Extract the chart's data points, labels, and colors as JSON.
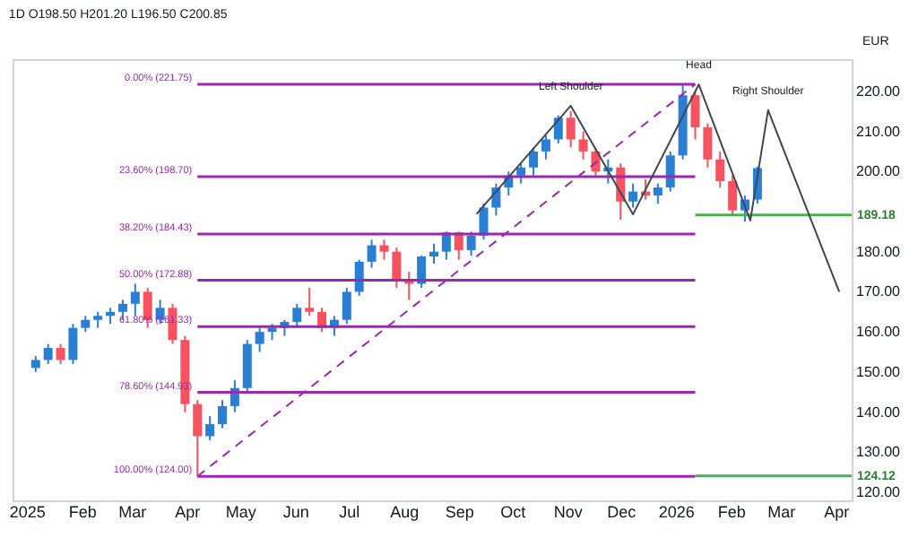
{
  "chart_data": {
    "type": "candlestick",
    "title": "1D  O198.50 H201.20 L196.50 C200.85",
    "x": [
      "2025-01-06",
      "2025-01-13",
      "2025-01-20",
      "2025-01-27",
      "2025-02-03",
      "2025-02-10",
      "2025-02-17",
      "2025-02-24",
      "2025-03-03",
      "2025-03-10",
      "2025-03-17",
      "2025-03-24",
      "2025-03-31",
      "2025-04-07",
      "2025-04-14",
      "2025-04-21",
      "2025-04-28",
      "2025-05-05",
      "2025-05-12",
      "2025-05-19",
      "2025-05-26",
      "2025-06-02",
      "2025-06-09",
      "2025-06-16",
      "2025-06-23",
      "2025-06-30",
      "2025-07-07",
      "2025-07-14",
      "2025-07-21",
      "2025-07-28",
      "2025-08-04",
      "2025-08-11",
      "2025-08-18",
      "2025-08-25",
      "2025-09-01",
      "2025-09-08",
      "2025-09-15",
      "2025-09-22",
      "2025-09-29",
      "2025-10-06",
      "2025-10-13",
      "2025-10-20",
      "2025-10-27",
      "2025-11-03",
      "2025-11-10",
      "2025-11-17",
      "2025-11-24",
      "2025-12-01",
      "2025-12-08",
      "2025-12-15",
      "2025-12-22",
      "2025-12-29",
      "2026-01-05",
      "2026-01-12",
      "2026-01-19",
      "2026-01-26",
      "2026-02-02",
      "2026-02-09",
      "2026-02-16"
    ],
    "ohlc": [
      [
        151,
        154,
        150,
        153
      ],
      [
        153,
        157,
        152,
        156
      ],
      [
        156,
        157,
        152,
        153
      ],
      [
        153,
        162,
        152,
        161
      ],
      [
        161,
        164,
        160,
        163
      ],
      [
        163,
        165,
        161,
        164
      ],
      [
        164,
        166,
        162,
        165
      ],
      [
        165,
        168,
        163,
        167
      ],
      [
        167,
        172,
        164,
        170
      ],
      [
        170,
        171,
        161,
        163
      ],
      [
        163,
        168,
        162,
        166
      ],
      [
        166,
        167,
        157,
        158
      ],
      [
        158,
        159,
        140,
        142
      ],
      [
        142,
        143,
        124,
        134
      ],
      [
        134,
        139,
        133,
        137
      ],
      [
        137,
        143,
        136,
        141.5
      ],
      [
        141.5,
        148,
        140,
        146
      ],
      [
        146,
        158,
        145,
        157
      ],
      [
        157,
        161,
        155,
        160
      ],
      [
        160,
        162,
        158,
        161
      ],
      [
        161,
        163,
        159,
        162.5
      ],
      [
        162.5,
        167,
        161,
        166
      ],
      [
        166,
        171,
        164,
        165
      ],
      [
        165,
        166,
        160,
        161
      ],
      [
        161,
        164,
        159,
        163
      ],
      [
        163,
        171,
        162,
        170
      ],
      [
        170,
        178,
        169,
        177.5
      ],
      [
        177.5,
        183,
        176,
        181.6
      ],
      [
        181.6,
        183,
        178,
        180
      ],
      [
        180,
        181,
        171,
        173
      ],
      [
        173,
        175,
        168,
        172
      ],
      [
        172,
        179,
        171,
        178.8
      ],
      [
        178.8,
        182,
        177,
        180
      ],
      [
        180,
        185,
        178,
        184.8
      ],
      [
        184.8,
        185,
        178,
        180.4
      ],
      [
        180.4,
        185,
        179,
        184
      ],
      [
        184,
        192,
        183,
        191
      ],
      [
        191,
        197,
        189,
        196
      ],
      [
        196,
        200,
        194,
        199
      ],
      [
        199,
        202,
        197,
        201
      ],
      [
        201,
        206,
        199,
        205
      ],
      [
        205,
        209,
        203,
        208
      ],
      [
        208,
        214,
        207,
        213.4
      ],
      [
        213.4,
        215,
        206,
        208
      ],
      [
        208,
        210,
        203,
        205
      ],
      [
        205,
        206,
        199,
        200
      ],
      [
        200,
        203,
        197,
        201
      ],
      [
        201,
        202,
        188,
        192.5
      ],
      [
        192.5,
        197,
        191,
        195
      ],
      [
        195,
        198,
        193,
        194
      ],
      [
        194,
        197,
        192,
        196
      ],
      [
        196,
        205,
        195,
        204
      ],
      [
        204,
        221.75,
        203,
        219
      ],
      [
        219,
        220,
        208,
        211
      ],
      [
        211,
        212,
        201,
        203
      ],
      [
        203,
        205,
        196,
        197.6
      ],
      [
        197.6,
        199,
        189,
        190.3
      ],
      [
        190.3,
        194,
        187.5,
        193
      ],
      [
        193,
        201.2,
        192,
        200.85
      ]
    ],
    "series": [
      {
        "type": "line",
        "color": "#434651",
        "x": [
          "2025-09-11",
          "2025-11-03",
          "2025-12-08",
          "2026-01-14",
          "2026-02-12",
          "2026-02-22",
          "2026-04-03"
        ],
        "values": [
          189.4,
          216.4,
          189.3,
          221.7,
          187.8,
          215.3,
          170
        ]
      },
      {
        "type": "line",
        "color": "#9c27b0",
        "line_style": "dashed",
        "x": [
          "2025-04-07",
          "2026-01-12"
        ],
        "values": [
          124,
          221.75
        ]
      }
    ],
    "ref_lines": [
      {
        "axis": "y",
        "value": 221.75,
        "label": "0.00% (221.75)",
        "color": "#9c27b0"
      },
      {
        "axis": "y",
        "value": 198.7,
        "label": "23.60% (198.70)",
        "color": "#9c27b0"
      },
      {
        "axis": "y",
        "value": 184.43,
        "label": "38.20% (184.43)",
        "color": "#9c27b0"
      },
      {
        "axis": "y",
        "value": 172.88,
        "label": "50.00% (172.88)",
        "color": "#9c27b0"
      },
      {
        "axis": "y",
        "value": 161.33,
        "label": "61.80% (161.33)",
        "color": "#9c27b0"
      },
      {
        "axis": "y",
        "value": 144.93,
        "label": "78.60% (144.93)",
        "color": "#9c27b0"
      },
      {
        "axis": "y",
        "value": 124,
        "label": "100.00% (124.00)",
        "color": "#9c27b0"
      },
      {
        "axis": "y",
        "value": 189.18,
        "label": "189.18",
        "color": "#4caf50"
      },
      {
        "axis": "y",
        "value": 124.12,
        "label": "124.12",
        "color": "#4caf50"
      }
    ],
    "annotations": [
      {
        "text": "Left Shoulder",
        "x": "2025-11-03",
        "y": 216.4
      },
      {
        "text": "Head",
        "x": "2026-01-14",
        "y": 221.7
      },
      {
        "text": "Right Shoulder",
        "x": "2026-02-22",
        "y": 215.3
      },
      "EUR"
    ],
    "xlim": [
      "2024-12-24",
      "2026-04-10"
    ],
    "xticks": [
      {
        "value": "2025-01",
        "label": "2025"
      },
      {
        "value": "2025-02",
        "label": "Feb"
      },
      {
        "value": "2025-03",
        "label": "Mar"
      },
      {
        "value": "2025-04",
        "label": "Apr"
      },
      {
        "value": "2025-05",
        "label": "May"
      },
      {
        "value": "2025-06",
        "label": "Jun"
      },
      {
        "value": "2025-07",
        "label": "Jul"
      },
      {
        "value": "2025-08",
        "label": "Aug"
      },
      {
        "value": "2025-09",
        "label": "Sep"
      },
      {
        "value": "2025-10",
        "label": "Oct"
      },
      {
        "value": "2025-11",
        "label": "Nov"
      },
      {
        "value": "2025-12",
        "label": "Dec"
      },
      {
        "value": "2026-01",
        "label": "2026"
      },
      {
        "value": "2026-02",
        "label": "Feb"
      },
      {
        "value": "2026-03",
        "label": "Mar"
      },
      {
        "value": "2026-04",
        "label": "Apr"
      }
    ],
    "ylim": [
      118,
      228
    ],
    "yticks": [
      {
        "value": 120,
        "label": "120.00"
      },
      {
        "value": 130,
        "label": "130.00"
      },
      {
        "value": 140,
        "label": "140.00"
      },
      {
        "value": 150,
        "label": "150.00"
      },
      {
        "value": 160,
        "label": "160.00"
      },
      {
        "value": 170,
        "label": "170.00"
      },
      {
        "value": 180,
        "label": "180.00"
      },
      {
        "value": 200,
        "label": "200.00"
      },
      {
        "value": 210,
        "label": "210.00"
      },
      {
        "value": 220,
        "label": "220.00"
      }
    ],
    "grid": false
  }
}
